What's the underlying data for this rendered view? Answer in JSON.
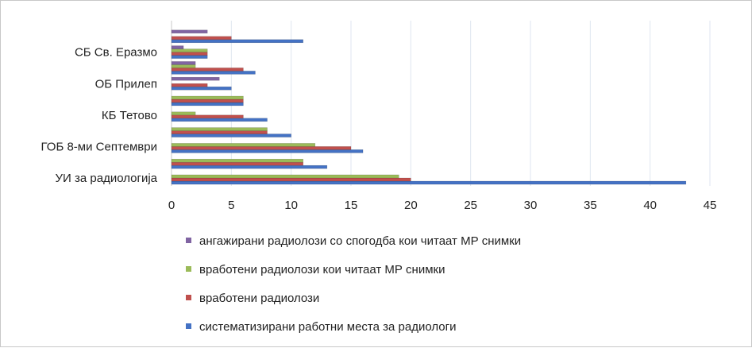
{
  "chart_data": {
    "type": "bar",
    "orientation": "horizontal",
    "categories": [
      "УИ за радиологија",
      "",
      "ГОБ 8-ми Септември",
      "",
      "КБ Тетово",
      "",
      "ОБ Прилеп",
      "",
      "СБ Св. Еразмо",
      ""
    ],
    "series": [
      {
        "name": "систематизирани работни места за радиологи",
        "color": "#4472c4",
        "values": [
          43,
          13,
          16,
          10,
          8,
          6,
          5,
          7,
          3,
          11
        ]
      },
      {
        "name": "вработени радиолози",
        "color": "#c0504d",
        "values": [
          20,
          11,
          15,
          8,
          6,
          6,
          3,
          6,
          3,
          5
        ]
      },
      {
        "name": " вработени радиолози   кои читаат МР снимки",
        "color": "#9bbb59",
        "values": [
          19,
          11,
          12,
          8,
          2,
          6,
          0,
          2,
          3,
          0
        ]
      },
      {
        "name": "ангажирани радиолози со спогодба  кои читаат МР снимки",
        "color": "#8064a2",
        "values": [
          0,
          0,
          0,
          0,
          0,
          0,
          4,
          2,
          1,
          3
        ]
      }
    ],
    "legend_order": [
      3,
      2,
      1,
      0
    ],
    "xlim": [
      0,
      45
    ],
    "xticks": [
      "0",
      "5",
      "10",
      "15",
      "20",
      "25",
      "30",
      "35",
      "40",
      "45"
    ],
    "xtick_values": [
      0,
      5,
      10,
      15,
      20,
      25,
      30,
      35,
      40,
      45
    ],
    "grid": true,
    "legend_position": "bottom",
    "title": "",
    "xlabel": "",
    "ylabel": ""
  }
}
